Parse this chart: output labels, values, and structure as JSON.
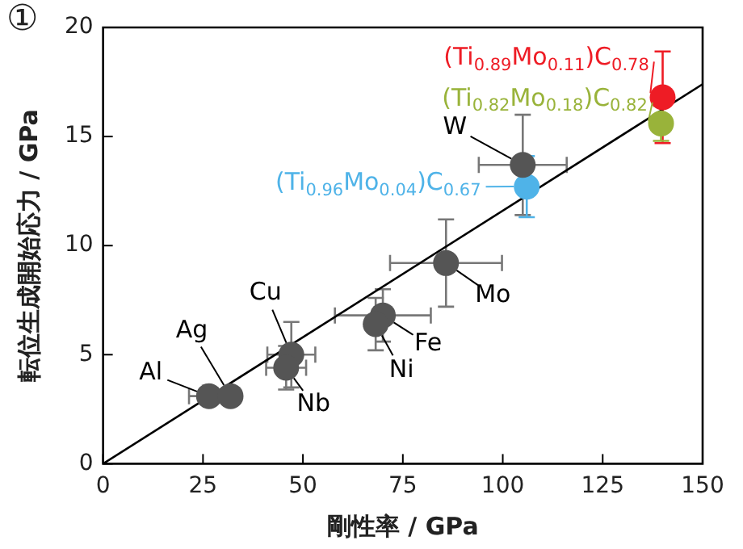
{
  "chart_data": {
    "type": "scatter",
    "xlabel": "剛性率 / GPa",
    "ylabel": "転位生成開始応力 / GPa",
    "xlim": [
      0,
      150
    ],
    "xticks": [
      0,
      25,
      50,
      75,
      100,
      125,
      150
    ],
    "ylim": [
      0,
      20
    ],
    "yticks": [
      0,
      5,
      10,
      15,
      20
    ],
    "grid": false,
    "legend": false,
    "marker": "circle",
    "series": [
      {
        "type": "line",
        "x": [
          0,
          150
        ],
        "values": [
          0,
          17.4
        ],
        "color": "#000000",
        "marker": "none"
      },
      {
        "type": "scatter",
        "x": [
          26.5,
          31.9,
          47.1,
          45.8,
          70.0,
          68.2,
          85.8,
          105
        ],
        "values": [
          3.1,
          3.1,
          5.0,
          4.4,
          6.8,
          6.4,
          9.2,
          13.7
        ],
        "color": "#555555",
        "errors": [
          null,
          null,
          1.5,
          1.0,
          1.2,
          1.2,
          2.0,
          2.3
        ],
        "xerrors": [
          5,
          null,
          6,
          5,
          12,
          null,
          14,
          11
        ]
      },
      {
        "type": "scatter",
        "x": [
          106
        ],
        "values": [
          12.7
        ],
        "color": "#4fb3e8",
        "errors": [
          1.4
        ]
      },
      {
        "type": "scatter",
        "x": [
          140
        ],
        "values": [
          16.8
        ],
        "color": "#ee1c25",
        "errors": [
          2.1
        ]
      },
      {
        "type": "scatter",
        "x": [
          139.6
        ],
        "values": [
          15.6
        ],
        "color": "#99b33a",
        "errors": [
          0.8
        ]
      }
    ],
    "annotations": [
      "①",
      {
        "text": "Al",
        "x": 26.5,
        "y": 3.1
      },
      {
        "text": "Ag",
        "x": 31.9,
        "y": 3.1
      },
      {
        "text": "Cu",
        "x": 47.1,
        "y": 5.0
      },
      {
        "text": "Nb",
        "x": 45.8,
        "y": 4.4
      },
      {
        "text": "Fe",
        "x": 70.0,
        "y": 6.8
      },
      {
        "text": "Ni",
        "x": 68.2,
        "y": 6.4
      },
      {
        "text": "Mo",
        "x": 85.8,
        "y": 9.2
      },
      {
        "text": "W",
        "x": 105,
        "y": 13.7
      },
      {
        "text": "(Ti$_{0.96}$Mo$_{0.04}$)C$_{0.67}$",
        "x": 106,
        "y": 12.7
      },
      {
        "text": "(Ti$_{0.89}$Mo$_{0.11}$)C$_{0.78}$",
        "x": 140,
        "y": 16.8
      },
      {
        "text": "(Ti$_{0.82}$Mo$_{0.18}$)C$_{0.82}$",
        "x": 139.6,
        "y": 15.6
      }
    ]
  }
}
